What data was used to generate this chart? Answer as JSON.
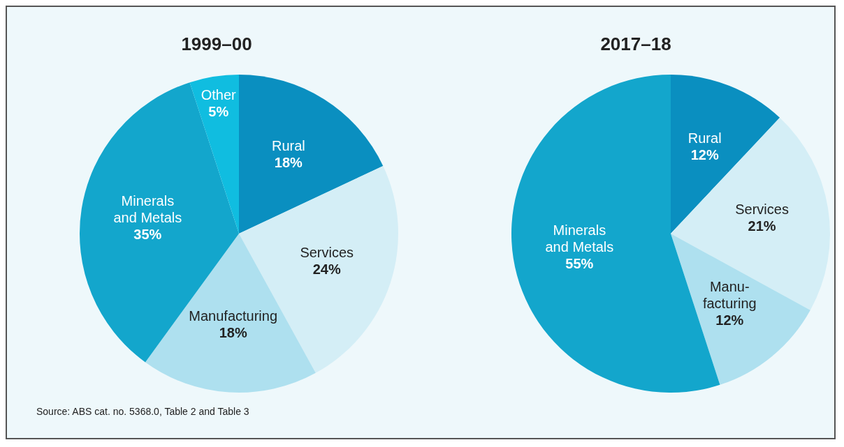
{
  "chart_data": [
    {
      "type": "pie",
      "title": "1999–00",
      "categories": [
        "Rural",
        "Services",
        "Manufacturing",
        "Minerals\nand Metals",
        "Other"
      ],
      "values": [
        18,
        24,
        18,
        35,
        5
      ],
      "value_labels": [
        "18%",
        "24%",
        "18%",
        "35%",
        "5%"
      ],
      "colors": [
        "#0a8fc0",
        "#d4eef6",
        "#aee0ef",
        "#13a6cc",
        "#10bde0"
      ],
      "legend": false,
      "annotations": [
        "Source: ABS cat. no. 5368.0, Table 2 and Table 3"
      ]
    },
    {
      "type": "pie",
      "title": "2017–18",
      "categories": [
        "Rural",
        "Services",
        "Manu-\nfacturing",
        "Minerals\nand Metals"
      ],
      "values": [
        12,
        21,
        12,
        55
      ],
      "value_labels": [
        "12%",
        "21%",
        "12%",
        "55%"
      ],
      "colors": [
        "#0a8fc0",
        "#d4eef6",
        "#aee0ef",
        "#13a6cc"
      ],
      "legend": false
    }
  ]
}
